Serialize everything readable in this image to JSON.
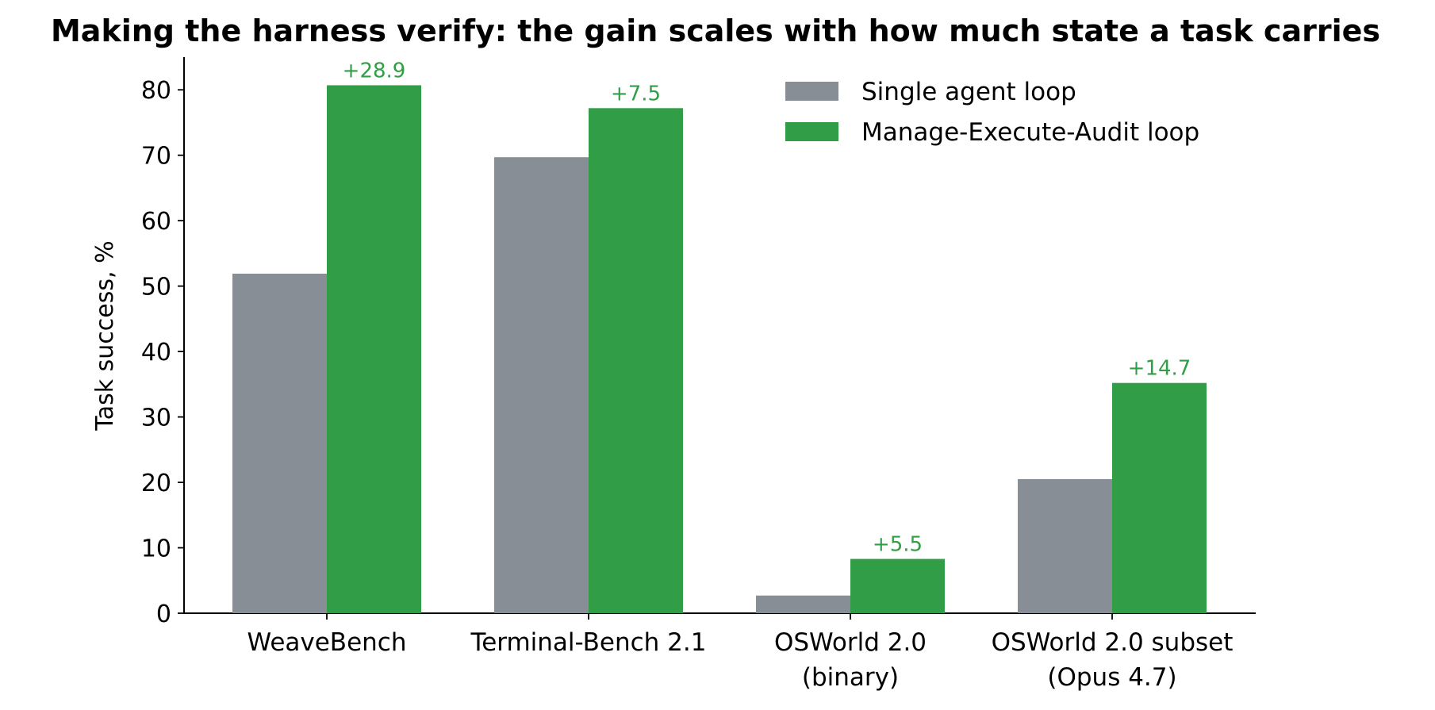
{
  "chart_data": {
    "type": "bar",
    "title": "Making the harness verify: the gain scales with how much state a task carries",
    "xlabel": "",
    "ylabel": "Task success, %",
    "ylim": [
      0,
      85
    ],
    "yticks": [
      0,
      10,
      20,
      30,
      40,
      50,
      60,
      70,
      80
    ],
    "grid": false,
    "legend_position": "top-center",
    "categories": [
      [
        "WeaveBench"
      ],
      [
        "Terminal-Bench 2.1"
      ],
      [
        "OSWorld 2.0",
        "(binary)"
      ],
      [
        "OSWorld 2.0 subset",
        "(Opus 4.7)"
      ]
    ],
    "series": [
      {
        "name": "Single agent loop",
        "color": "#878e95",
        "values": [
          51.9,
          69.7,
          2.7,
          20.5
        ]
      },
      {
        "name": "Manage-Execute-Audit loop",
        "color": "#319e47",
        "values": [
          80.7,
          77.2,
          8.3,
          35.2
        ]
      }
    ],
    "annotations": [
      "+28.9",
      "+7.5",
      "+5.5",
      "+14.7"
    ],
    "annotation_color": "#319e47"
  }
}
